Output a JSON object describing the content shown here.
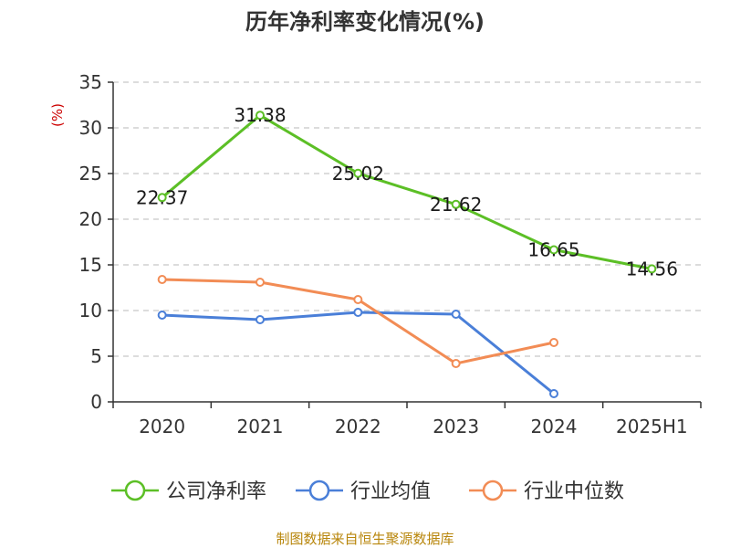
{
  "title": "历年净利率变化情况(%)",
  "source": "制图数据来自恒生聚源数据库",
  "colors": {
    "company": "#5cbf26",
    "industry_avg": "#4a7fd8",
    "industry_median": "#f28c55",
    "source": "#b8860b",
    "unit": "#cc0000"
  },
  "chart_data": {
    "type": "line",
    "title": "历年净利率变化情况(%)",
    "ylabel": "(%)",
    "xlabel": "",
    "categories": [
      "2020",
      "2021",
      "2022",
      "2023",
      "2024",
      "2025H1"
    ],
    "ylim": [
      0,
      35
    ],
    "yticks": [
      0,
      5,
      10,
      15,
      20,
      25,
      30,
      35
    ],
    "ytick_labels": [
      "0",
      "5",
      "10",
      "15",
      "20",
      "25",
      "30",
      "35"
    ],
    "grid": "horizontal dashed",
    "legend_position": "bottom",
    "series": [
      {
        "name": "公司净利率",
        "color": "#5cbf26",
        "values": [
          22.37,
          31.38,
          25.02,
          21.62,
          16.65,
          14.56
        ],
        "labels": [
          "22.37",
          "31.38",
          "25.02",
          "21.62",
          "16.65",
          "14.56"
        ]
      },
      {
        "name": "行业均值",
        "color": "#4a7fd8",
        "values": [
          9.5,
          9.0,
          9.8,
          9.6,
          0.9,
          null
        ]
      },
      {
        "name": "行业中位数",
        "color": "#f28c55",
        "values": [
          13.4,
          13.1,
          11.2,
          4.2,
          6.5,
          null
        ]
      }
    ]
  }
}
